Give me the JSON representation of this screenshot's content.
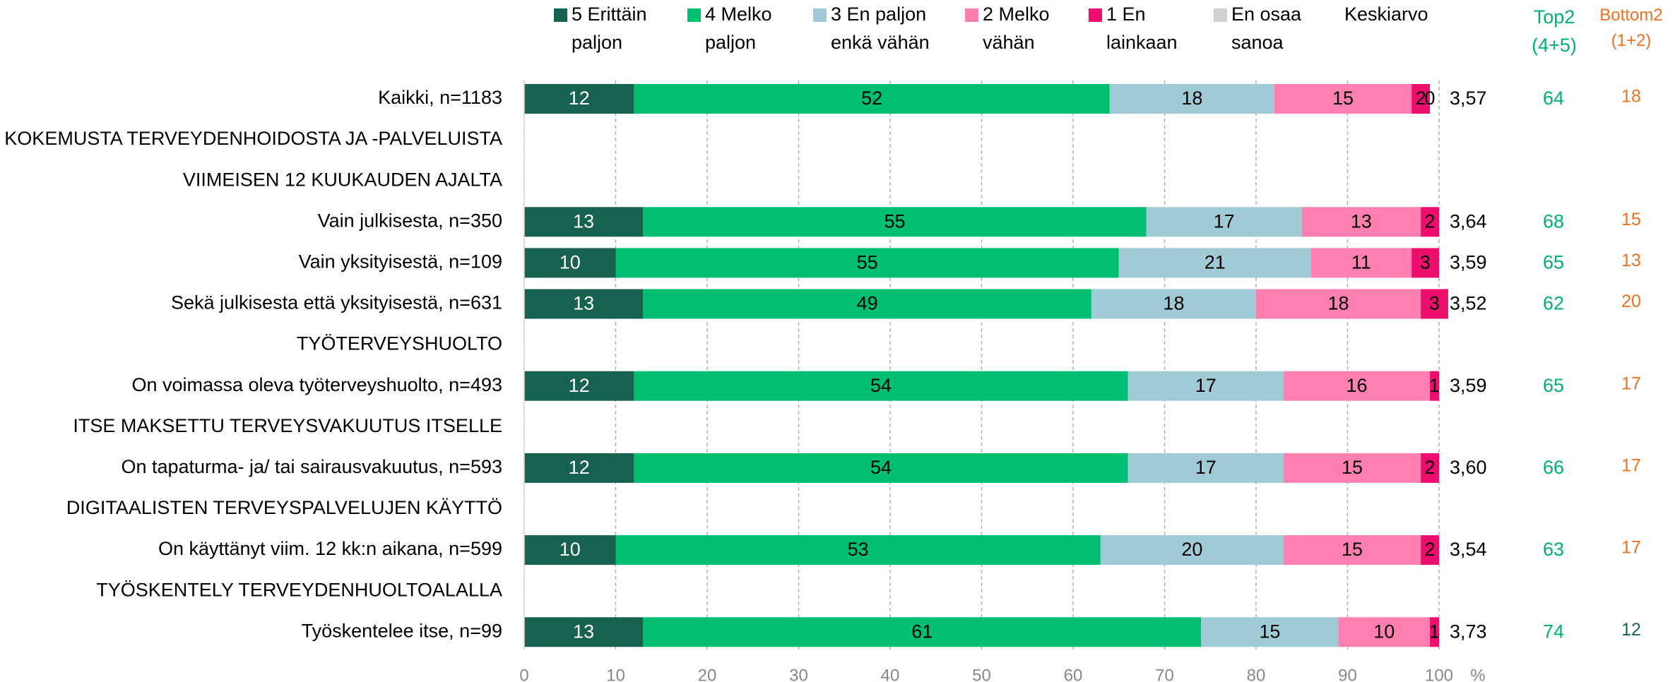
{
  "chart_data": {
    "type": "stacked-bar-horizontal",
    "categories": [
      "Kaikki, n=1183",
      "KOKEMUSTA TERVEYDENHOIDOSTA JA -PALVELUISTA",
      "VIIMEISEN 12 KUUKAUDEN AJALTA",
      "Vain julkisesta, n=350",
      "Vain yksityisestä, n=109",
      "Sekä julkisesta että yksityisestä, n=631",
      "TYÖTERVEYSHUOLTO",
      "On voimassa oleva työterveyshuolto, n=493",
      "ITSE MAKSETTU TERVEYSVAKUUTUS ITSELLE",
      "On tapaturma- ja/ tai sairausvakuutus, n=593",
      "DIGITAALISTEN TERVEYSPALVELUJEN KÄYTTÖ",
      "On käyttänyt viim. 12 kk:n aikana, n=599",
      "TYÖSKENTELY TERVEYDENHUOLTOALALLA",
      "Työskentelee itse, n=99"
    ],
    "series": [
      {
        "name": "5 Erittäin\npaljon",
        "color": "#17614f",
        "label_color": "#ffffff",
        "values": [
          12,
          null,
          null,
          13,
          10,
          13,
          null,
          12,
          null,
          12,
          null,
          10,
          null,
          13
        ]
      },
      {
        "name": "4 Melko\npaljon",
        "color": "#00bf72",
        "label_color": "#000000",
        "values": [
          52,
          null,
          null,
          55,
          55,
          49,
          null,
          54,
          null,
          54,
          null,
          53,
          null,
          61
        ]
      },
      {
        "name": "3 En paljon\nenkä vähän",
        "color": "#a0cad5",
        "label_color": "#000000",
        "values": [
          18,
          null,
          null,
          17,
          21,
          18,
          null,
          17,
          null,
          17,
          null,
          20,
          null,
          15
        ]
      },
      {
        "name": "2 Melko\nvähän",
        "color": "#ff80b0",
        "label_color": "#000000",
        "values": [
          15,
          null,
          null,
          13,
          11,
          18,
          null,
          16,
          null,
          15,
          null,
          15,
          null,
          10
        ]
      },
      {
        "name": "1 En\nlainkaan",
        "color": "#ee0e6e",
        "label_color": "#000000",
        "values": [
          2,
          null,
          null,
          2,
          3,
          3,
          null,
          1,
          null,
          2,
          null,
          2,
          null,
          1
        ]
      },
      {
        "name": "En osaa\nsanoa",
        "color": "#d0d0d0",
        "label_color": "#000000",
        "values": [
          0,
          null,
          null,
          null,
          null,
          null,
          null,
          null,
          null,
          null,
          null,
          null,
          null,
          null
        ]
      }
    ],
    "mean": {
      "name": "Keskiarvo",
      "values": [
        3.57,
        null,
        null,
        3.64,
        3.59,
        3.52,
        null,
        3.59,
        null,
        3.6,
        null,
        3.54,
        null,
        3.73
      ],
      "value_labels": [
        "3,57",
        null,
        null,
        "3,64",
        "3,59",
        "3,52",
        null,
        "3,59",
        null,
        "3,60",
        null,
        "3,54",
        null,
        "3,73"
      ]
    },
    "top2": {
      "name": "Top2\n(4+5)",
      "color": "#00b070",
      "values": [
        64,
        null,
        null,
        68,
        65,
        62,
        null,
        65,
        null,
        66,
        null,
        63,
        null,
        74
      ]
    },
    "bottom2": {
      "name": "Bottom2\n(1+2)",
      "color": "#f07020",
      "colors": [
        "#f07020",
        null,
        null,
        "#f07020",
        "#f07020",
        "#f07020",
        null,
        "#f07020",
        null,
        "#f07020",
        null,
        "#f07020",
        null,
        "#1b5e6b"
      ],
      "values": [
        18,
        null,
        null,
        15,
        13,
        20,
        null,
        17,
        null,
        17,
        null,
        17,
        null,
        12
      ]
    },
    "xlim": [
      0,
      100
    ],
    "xticks": [
      0,
      10,
      20,
      30,
      40,
      50,
      60,
      70,
      80,
      90,
      100
    ],
    "x_unit": "%",
    "grid": true
  }
}
